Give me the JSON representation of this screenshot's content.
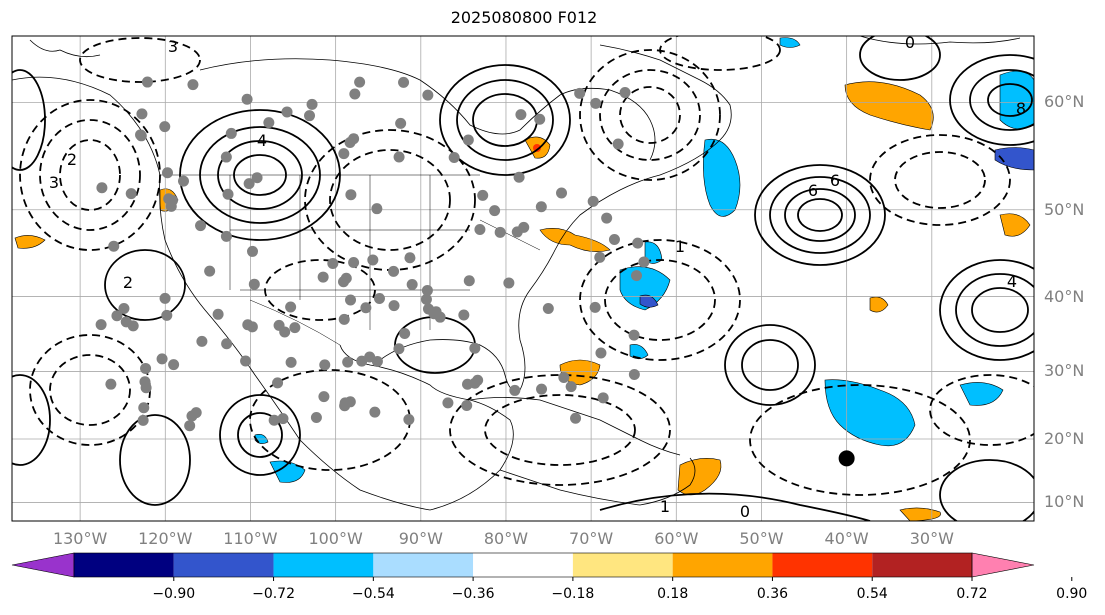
{
  "title": "2025080800 F012",
  "map": {
    "projection": "mercator",
    "lon_range": [
      -138,
      -18
    ],
    "lat_range": [
      7,
      65
    ],
    "lat_labels": [
      "60°N",
      "50°N",
      "40°N",
      "30°N",
      "20°N",
      "10°N"
    ],
    "lat_values": [
      60,
      50,
      40,
      30,
      20,
      10
    ],
    "lon_labels": [
      "130°W",
      "120°W",
      "110°W",
      "100°W",
      "90°W",
      "80°W",
      "70°W",
      "60°W",
      "50°W",
      "40°W",
      "30°W"
    ],
    "lon_values": [
      -130,
      -120,
      -110,
      -100,
      -90,
      -80,
      -70,
      -60,
      -50,
      -40,
      -30
    ],
    "station_color": "#808080",
    "marker": {
      "lon": -40,
      "lat": 17,
      "color": "#000000"
    }
  },
  "colorbar": {
    "tick_labels": [
      "−0.90",
      "−0.72",
      "−0.54",
      "−0.36",
      "−0.18",
      "0.18",
      "0.36",
      "0.54",
      "0.72",
      "0.90"
    ],
    "colors": [
      "#9933cc",
      "#000080",
      "#3355cc",
      "#00bfff",
      "#aaddff",
      "#ffffff",
      "#ffe680",
      "#ffa500",
      "#ff3300",
      "#b22222",
      "#ff80b0"
    ]
  },
  "contour_labels": [
    "0",
    "1",
    "2",
    "3",
    "4",
    "6",
    "8",
    "0",
    "1",
    "2",
    "3",
    "4",
    "6"
  ]
}
